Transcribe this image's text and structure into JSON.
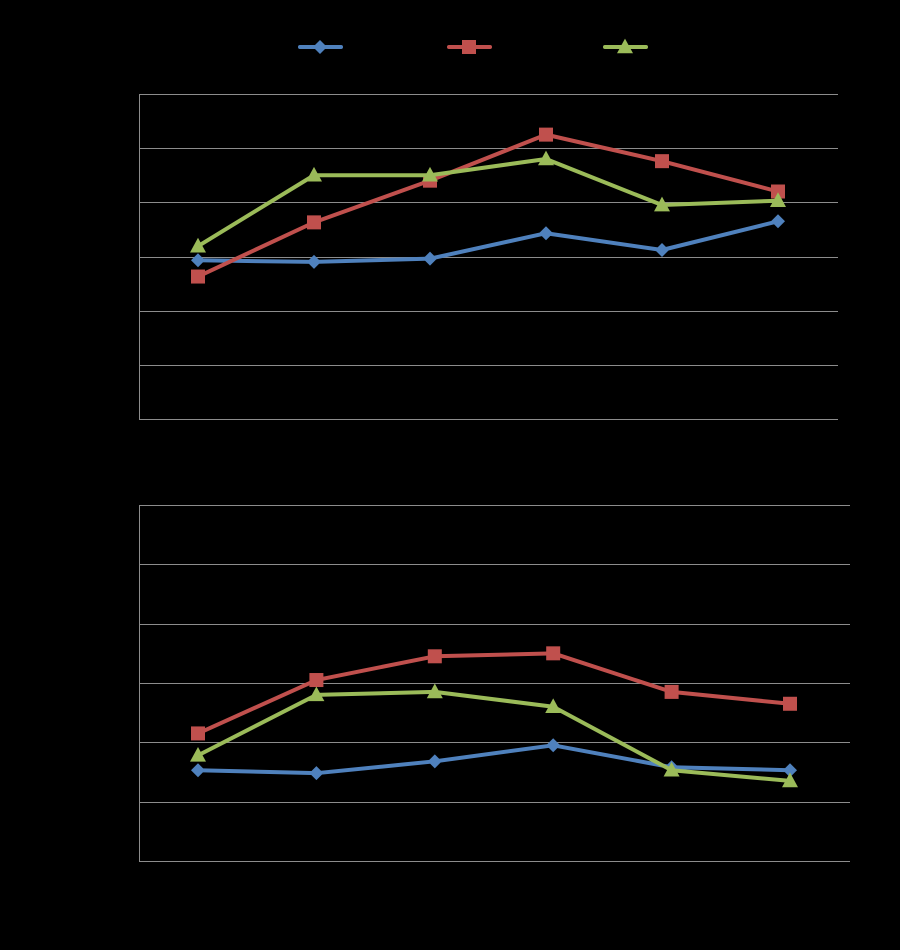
{
  "colors": {
    "background": "#000000",
    "gridline": "#8c8c8c",
    "series_blue": "#4f81bd",
    "series_red": "#c0504d",
    "series_green": "#9bbb59"
  },
  "legend": {
    "placement": "top-center",
    "entries": [
      {
        "marker": "diamond",
        "color": "#4f81bd",
        "label": ""
      },
      {
        "marker": "square",
        "color": "#c0504d",
        "label": ""
      },
      {
        "marker": "triangle",
        "color": "#9bbb59",
        "label": ""
      }
    ]
  },
  "chart_data": [
    {
      "type": "line",
      "title": "",
      "xlabel": "",
      "ylabel": "",
      "grid": true,
      "ylim": [
        0,
        6
      ],
      "x": [
        1,
        2,
        3,
        4,
        5,
        6
      ],
      "series": [
        {
          "marker": "diamond",
          "color": "#4f81bd",
          "values": [
            2.93,
            2.9,
            2.96,
            3.43,
            3.12,
            3.65
          ]
        },
        {
          "marker": "square",
          "color": "#c0504d",
          "values": [
            2.63,
            3.63,
            4.4,
            5.25,
            4.76,
            4.2
          ]
        },
        {
          "marker": "triangle",
          "color": "#9bbb59",
          "values": [
            3.19,
            4.5,
            4.5,
            4.8,
            3.95,
            4.03
          ]
        }
      ]
    },
    {
      "type": "line",
      "title": "",
      "xlabel": "",
      "ylabel": "",
      "grid": true,
      "ylim": [
        0,
        6
      ],
      "x": [
        1,
        2,
        3,
        4,
        5,
        6
      ],
      "series": [
        {
          "marker": "diamond",
          "color": "#4f81bd",
          "values": [
            1.53,
            1.48,
            1.68,
            1.95,
            1.58,
            1.53
          ]
        },
        {
          "marker": "square",
          "color": "#c0504d",
          "values": [
            2.15,
            3.05,
            3.45,
            3.5,
            2.85,
            2.65
          ]
        },
        {
          "marker": "triangle",
          "color": "#9bbb59",
          "values": [
            1.78,
            2.8,
            2.85,
            2.6,
            1.53,
            1.35
          ]
        }
      ]
    }
  ]
}
